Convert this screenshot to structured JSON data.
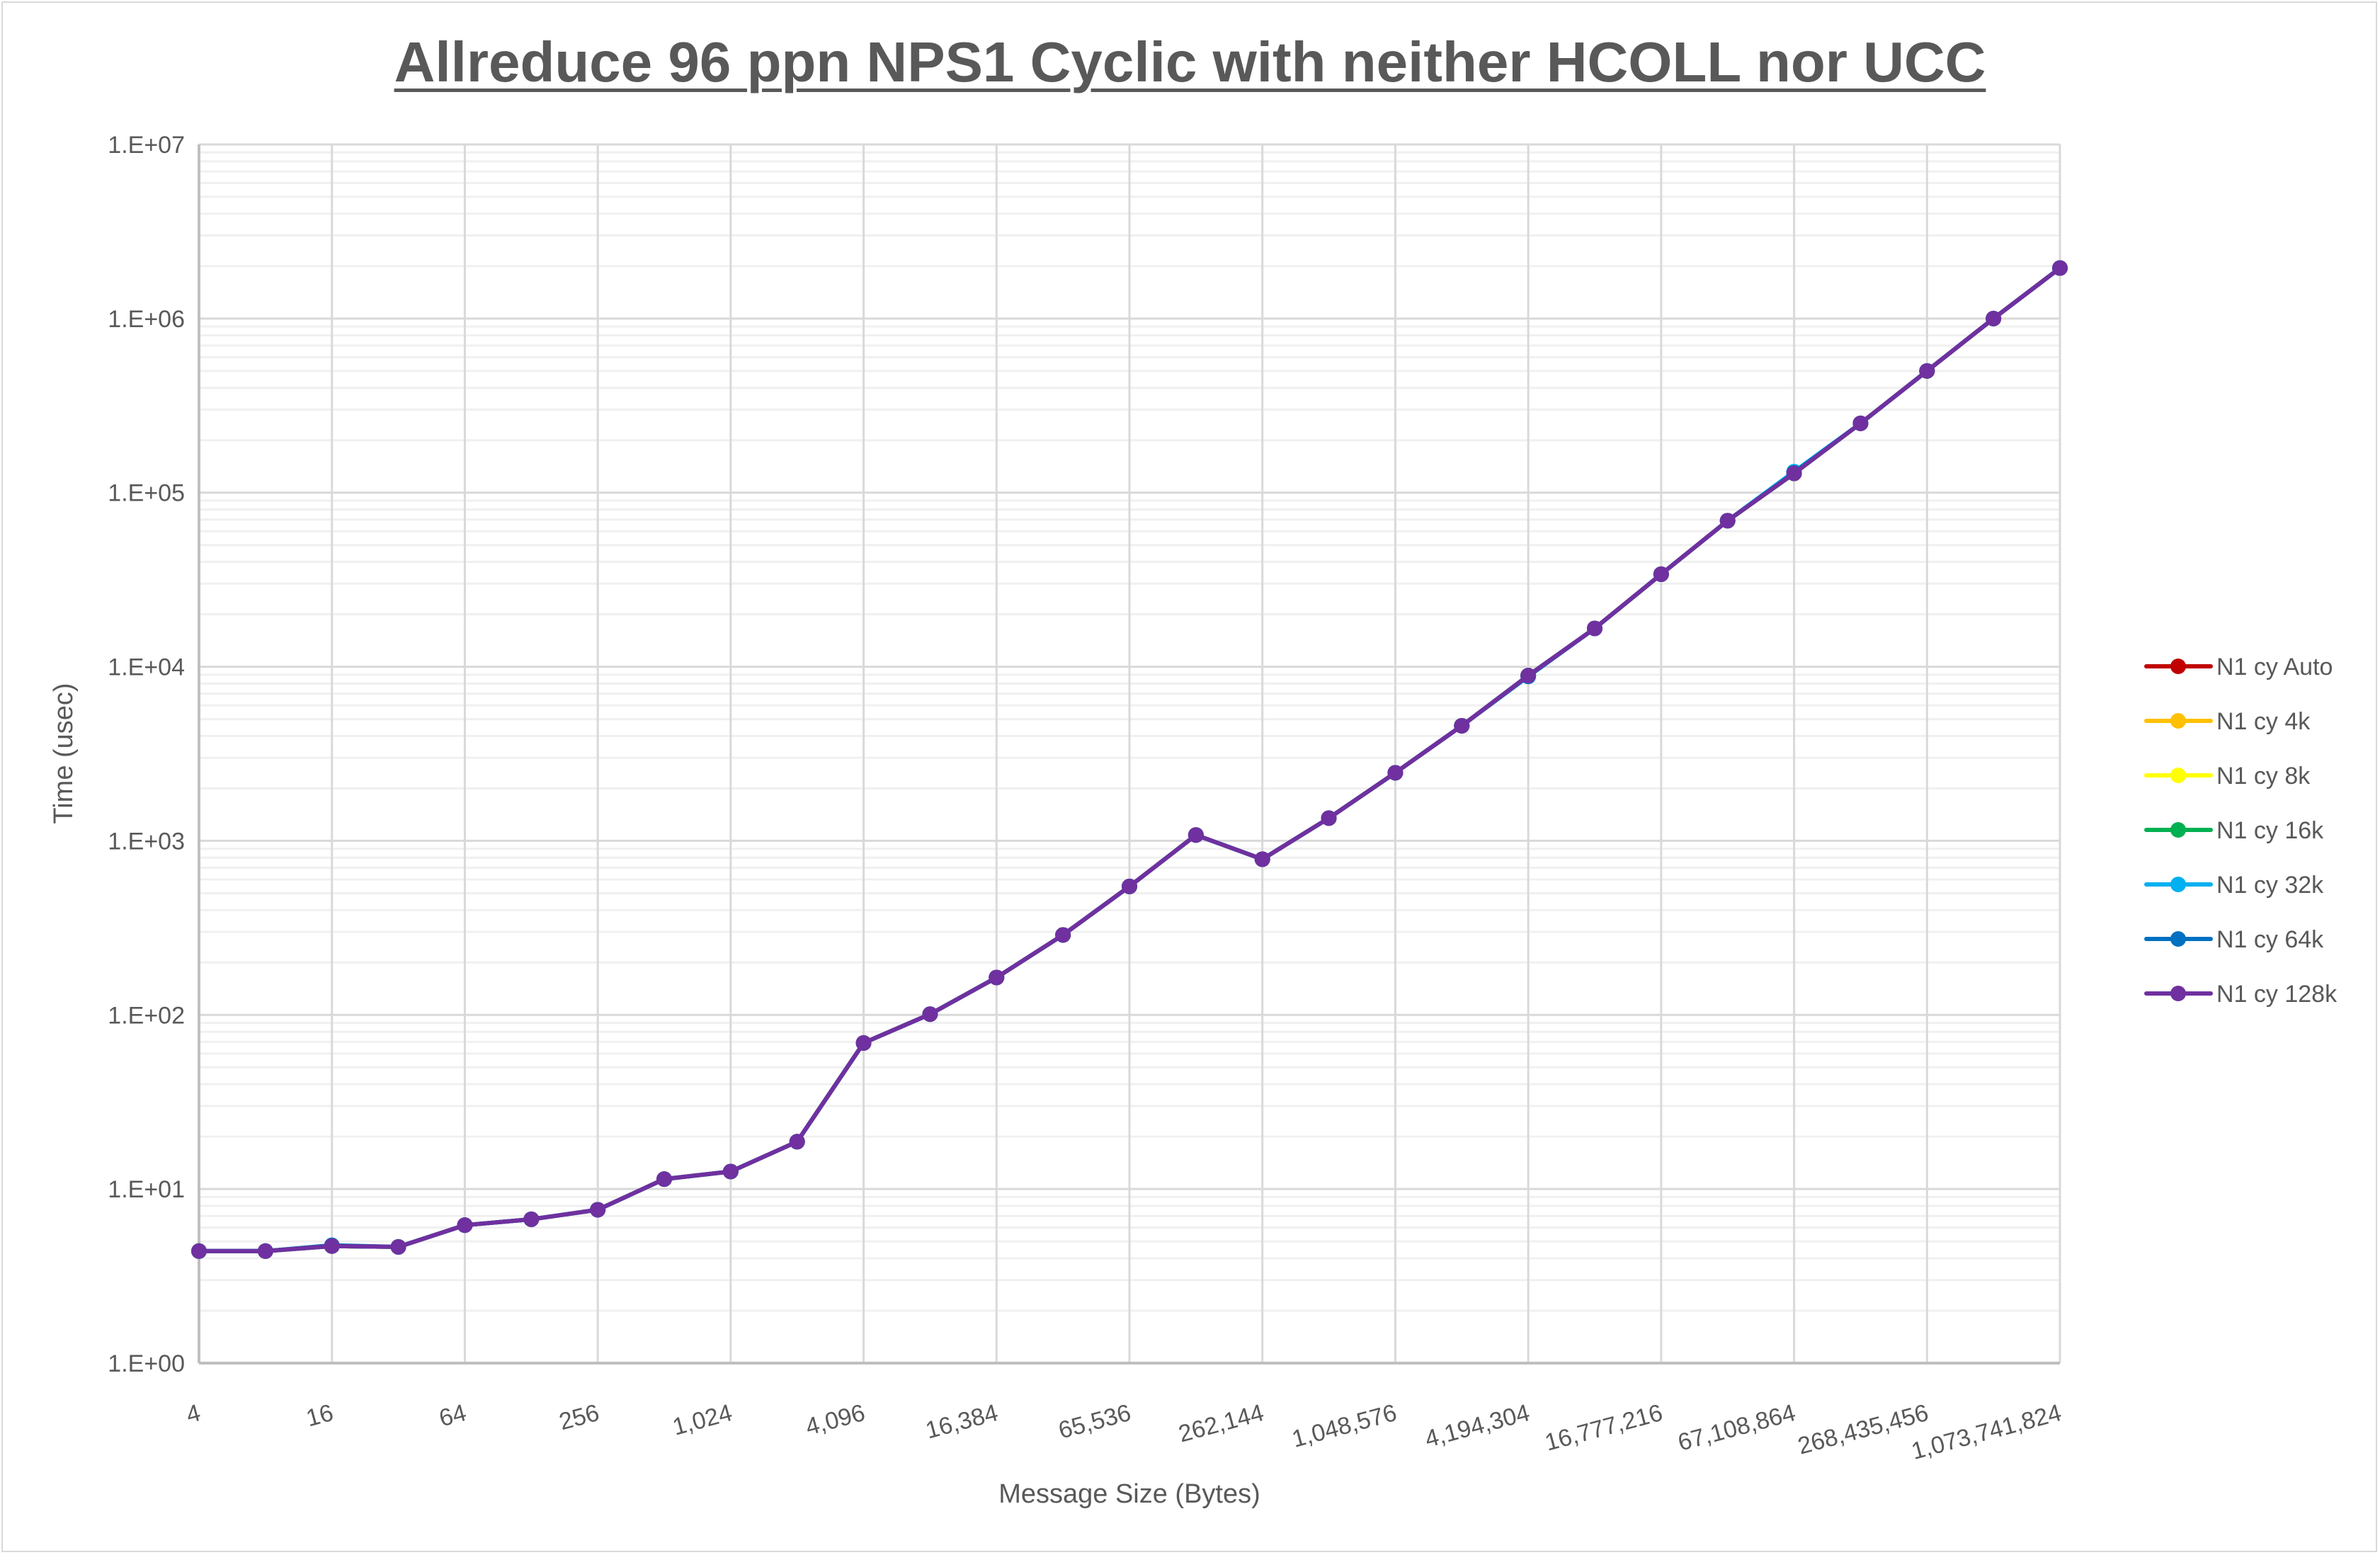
{
  "chart_data": {
    "type": "line",
    "title": "Allreduce 96 ppn NPS1 Cyclic with neither HCOLL nor UCC",
    "xlabel": "Message Size (Bytes)",
    "ylabel": "Time (usec)",
    "x_scale": "log2",
    "y_scale": "log10",
    "ylim": [
      1,
      10000000
    ],
    "grid": true,
    "legend_position": "right",
    "x": [
      4,
      8,
      16,
      32,
      64,
      128,
      256,
      512,
      1024,
      2048,
      4096,
      8192,
      16384,
      32768,
      65536,
      131072,
      262144,
      524288,
      1048576,
      2097152,
      4194304,
      8388608,
      16777216,
      33554432,
      67108864,
      134217728,
      268435456,
      536870912,
      1073741824
    ],
    "x_tick_labels": [
      "4",
      "16",
      "64",
      "256",
      "1,024",
      "4,096",
      "16,384",
      "65,536",
      "262,144",
      "1,048,576",
      "4,194,304",
      "16,777,216",
      "67,108,864",
      "268,435,456",
      "1,073,741,824"
    ],
    "y_tick_labels": [
      "1.E+00",
      "1.E+01",
      "1.E+02",
      "1.E+03",
      "1.E+04",
      "1.E+05",
      "1.E+06",
      "1.E+07"
    ],
    "series": [
      {
        "name": "N1 cy Auto",
        "color": "#c00000",
        "values": [
          4.4,
          4.4,
          4.7,
          4.65,
          6.2,
          6.7,
          7.6,
          11.4,
          12.6,
          18.7,
          69,
          101,
          164,
          288,
          547,
          1080,
          784,
          1350,
          2460,
          4580,
          8900,
          16600,
          34000,
          69000,
          129000,
          250000,
          500000,
          1000000,
          1950000
        ]
      },
      {
        "name": "N1 cy 4k",
        "color": "#ffc000",
        "values": [
          4.4,
          4.4,
          4.7,
          4.65,
          6.2,
          6.7,
          7.6,
          11.4,
          12.6,
          18.7,
          69,
          101,
          164,
          288,
          547,
          1080,
          784,
          1350,
          2460,
          4580,
          8900,
          16600,
          34000,
          69000,
          129000,
          250000,
          500000,
          1000000,
          1950000
        ]
      },
      {
        "name": "N1 cy 8k",
        "color": "#ffff00",
        "values": [
          4.4,
          4.4,
          4.7,
          4.65,
          6.2,
          6.7,
          7.6,
          11.4,
          12.6,
          18.7,
          69,
          101,
          164,
          288,
          547,
          1080,
          784,
          1350,
          2460,
          4580,
          8900,
          16600,
          34000,
          69000,
          129000,
          250000,
          500000,
          1000000,
          1950000
        ]
      },
      {
        "name": "N1 cy 16k",
        "color": "#00b050",
        "values": [
          4.4,
          4.4,
          4.7,
          4.65,
          6.2,
          6.7,
          7.6,
          11.4,
          12.6,
          18.7,
          69,
          101,
          164,
          288,
          547,
          1080,
          784,
          1350,
          2460,
          4580,
          8900,
          16600,
          34000,
          69000,
          129000,
          250000,
          500000,
          1000000,
          1950000
        ]
      },
      {
        "name": "N1 cy 32k",
        "color": "#00b0f0",
        "values": [
          4.4,
          4.4,
          4.7,
          4.65,
          6.2,
          6.7,
          7.6,
          11.4,
          12.6,
          18.7,
          69,
          101,
          164,
          288,
          547,
          1080,
          784,
          1350,
          2460,
          4580,
          8900,
          16600,
          34000,
          69000,
          132000,
          250000,
          500000,
          1000000,
          1950000
        ]
      },
      {
        "name": "N1 cy 64k",
        "color": "#0070c0",
        "values": [
          4.4,
          4.4,
          4.75,
          4.65,
          6.2,
          6.7,
          7.6,
          11.4,
          12.6,
          18.7,
          69,
          101,
          164,
          288,
          547,
          1080,
          784,
          1350,
          2460,
          4580,
          8800,
          16600,
          34000,
          69000,
          130000,
          250000,
          500000,
          1000000,
          1950000
        ]
      },
      {
        "name": "N1 cy 128k",
        "color": "#7030a0",
        "values": [
          4.4,
          4.4,
          4.7,
          4.65,
          6.2,
          6.7,
          7.6,
          11.4,
          12.6,
          18.7,
          69,
          101,
          164,
          288,
          547,
          1080,
          784,
          1350,
          2460,
          4580,
          8900,
          16600,
          34000,
          69000,
          129000,
          250000,
          500000,
          1000000,
          1950000
        ]
      }
    ]
  }
}
